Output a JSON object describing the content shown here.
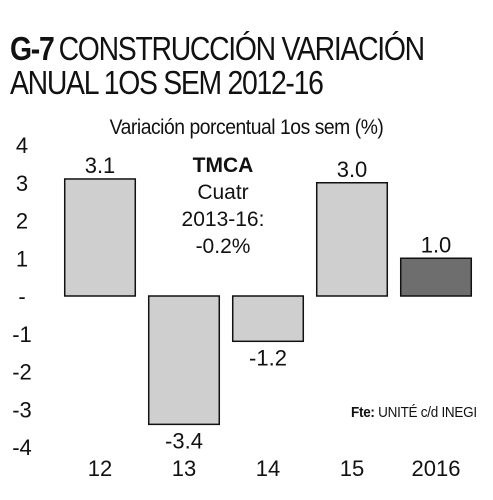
{
  "header": {
    "code": "G-7",
    "title_line1": "CONSTRUCCIÓN VARIACIÓN",
    "title_line2": "ANUAL 1OS SEM 2012-16",
    "subtitle": "Variación porcentual 1os sem (%)"
  },
  "note": {
    "head": "TMCA",
    "line1": "Cuatr",
    "line2": "2013-16:",
    "line3": "-0.2%"
  },
  "source": {
    "label": "Fte:",
    "text": "UNITÉ c/d INEGI"
  },
  "chart_data": {
    "type": "bar",
    "title": "CONSTRUCCIÓN VARIACIÓN ANUAL 1OS SEM 2012-16",
    "subtitle": "Variación porcentual 1os sem (%)",
    "categories": [
      "12",
      "13",
      "14",
      "15",
      "2016"
    ],
    "values": [
      3.1,
      -3.4,
      -1.2,
      3.0,
      1.0
    ],
    "data_labels": [
      "3.1",
      "-3.4",
      "-1.2",
      "3.0",
      "1.0"
    ],
    "y_ticks": [
      "4",
      "3",
      "2",
      "1",
      "-",
      "-1",
      "-2",
      "-3",
      "-4"
    ],
    "ylim": [
      -4,
      4
    ],
    "grid": false,
    "colors": {
      "bar": "#cfcfcf",
      "bar_highlight": "#6e6e6e",
      "bar_stroke": "#111111"
    },
    "highlight_index": 4
  }
}
